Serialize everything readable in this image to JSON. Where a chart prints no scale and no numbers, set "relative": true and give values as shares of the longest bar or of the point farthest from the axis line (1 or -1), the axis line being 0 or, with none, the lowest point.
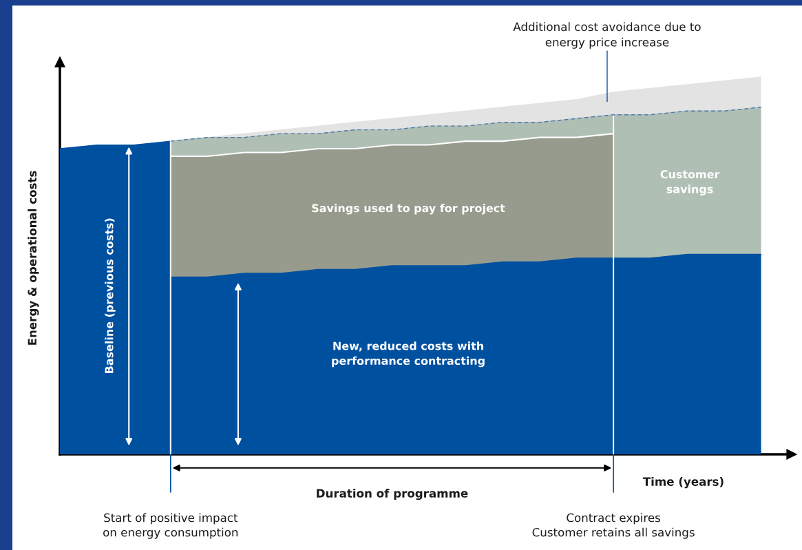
{
  "chart_data": {
    "type": "area",
    "relative": true,
    "xlabel": "Time (years)",
    "ylabel": "Energy & operational costs",
    "categories": [
      null,
      null,
      null,
      null,
      null,
      null,
      null,
      null,
      null,
      null,
      null,
      null,
      null,
      null,
      null,
      null,
      null,
      null,
      null,
      null
    ],
    "series": [
      {
        "name": "Additional cost avoidance due to\nenergy price increase",
        "color": "#e3e3e3",
        "values": [
          null,
          null,
          null,
          0.83,
          0.84,
          0.85,
          0.86,
          0.87,
          0.88,
          0.89,
          0.9,
          0.91,
          0.92,
          0.93,
          0.94,
          0.96,
          0.97,
          0.98,
          0.99,
          1.0
        ]
      },
      {
        "name": "Customer\nsavings",
        "color": "#b0bfb4",
        "values": [
          null,
          null,
          null,
          0.83,
          0.84,
          0.84,
          0.85,
          0.85,
          0.86,
          0.86,
          0.87,
          0.87,
          0.88,
          0.88,
          0.89,
          0.9,
          0.9,
          0.91,
          0.91,
          0.92
        ]
      },
      {
        "name": "Savings used to pay for project",
        "color": "#979b8e",
        "values": [
          null,
          null,
          null,
          0.79,
          0.79,
          0.8,
          0.8,
          0.81,
          0.81,
          0.82,
          0.82,
          0.83,
          0.83,
          0.84,
          0.84,
          0.85,
          null,
          null,
          null,
          null
        ]
      },
      {
        "name": "New, reduced costs with\nperformance contracting",
        "color": "#0050a0",
        "values": [
          null,
          null,
          null,
          0.47,
          0.47,
          0.48,
          0.48,
          0.49,
          0.49,
          0.5,
          0.5,
          0.5,
          0.51,
          0.51,
          0.52,
          0.52,
          0.52,
          0.53,
          0.53,
          0.53
        ]
      },
      {
        "name": "Baseline (previous costs)",
        "color": "#0050a0",
        "values": [
          0.81,
          0.82,
          0.82,
          0.83,
          null,
          null,
          null,
          null,
          null,
          null,
          null,
          null,
          null,
          null,
          null,
          null,
          null,
          null,
          null,
          null
        ]
      }
    ],
    "annotations": [
      "Duration of programme",
      "Start of positive impact\non energy consumption",
      "Contract expires\nCustomer retains all savings"
    ]
  }
}
